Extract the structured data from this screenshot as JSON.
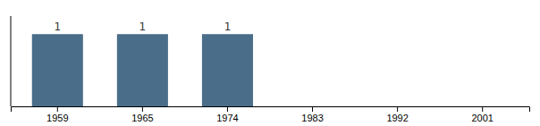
{
  "chart_data": {
    "type": "bar",
    "categories": [
      "1959",
      "1965",
      "1974",
      "1983",
      "1992",
      "2001"
    ],
    "values": [
      1,
      1,
      1,
      0,
      0,
      0
    ],
    "value_labels": [
      "1",
      "1",
      "1",
      null,
      null,
      null
    ],
    "data_labels": true,
    "color": "#4A6E8A",
    "ylim": [
      0,
      1.25
    ],
    "tick_labels": "x"
  }
}
